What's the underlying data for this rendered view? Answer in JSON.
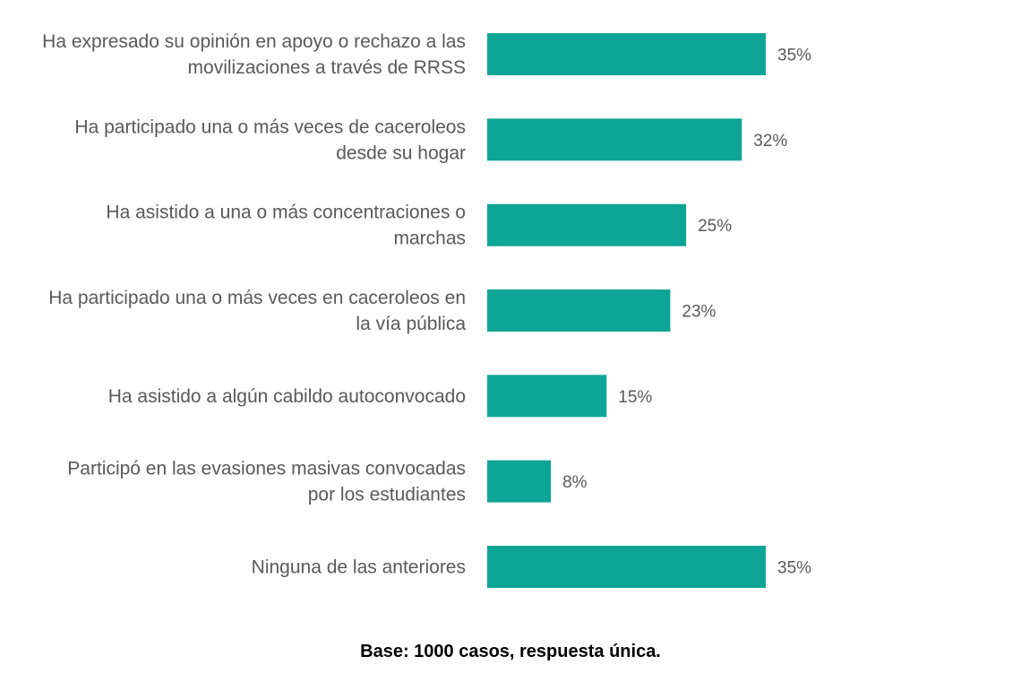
{
  "chart_data": {
    "type": "bar",
    "orientation": "horizontal",
    "categories": [
      [
        "Ha expresado su opinión en apoyo o rechazo a las",
        "movilizaciones a través de RRSS"
      ],
      [
        "Ha participado una o más veces de caceroleos",
        "desde su hogar"
      ],
      [
        "Ha asistido a una o más concentraciones o",
        "marchas"
      ],
      [
        "Ha participado una o más veces en caceroleos en",
        "la vía pública"
      ],
      [
        "Ha asistido a algún cabildo autoconvocado"
      ],
      [
        "Participó en las evasiones masivas convocadas",
        "por los estudiantes"
      ],
      [
        "Ninguna de las anteriores"
      ]
    ],
    "values": [
      35,
      32,
      25,
      23,
      15,
      8,
      35
    ],
    "value_labels": [
      "35%",
      "32%",
      "25%",
      "23%",
      "15%",
      "8%",
      "35%"
    ],
    "unit": "%",
    "xlim": [
      0,
      35
    ],
    "grid": false,
    "legend": "none",
    "bar_color": "#0FA596"
  },
  "footnote": "Base: 1000 casos, respuesta única."
}
